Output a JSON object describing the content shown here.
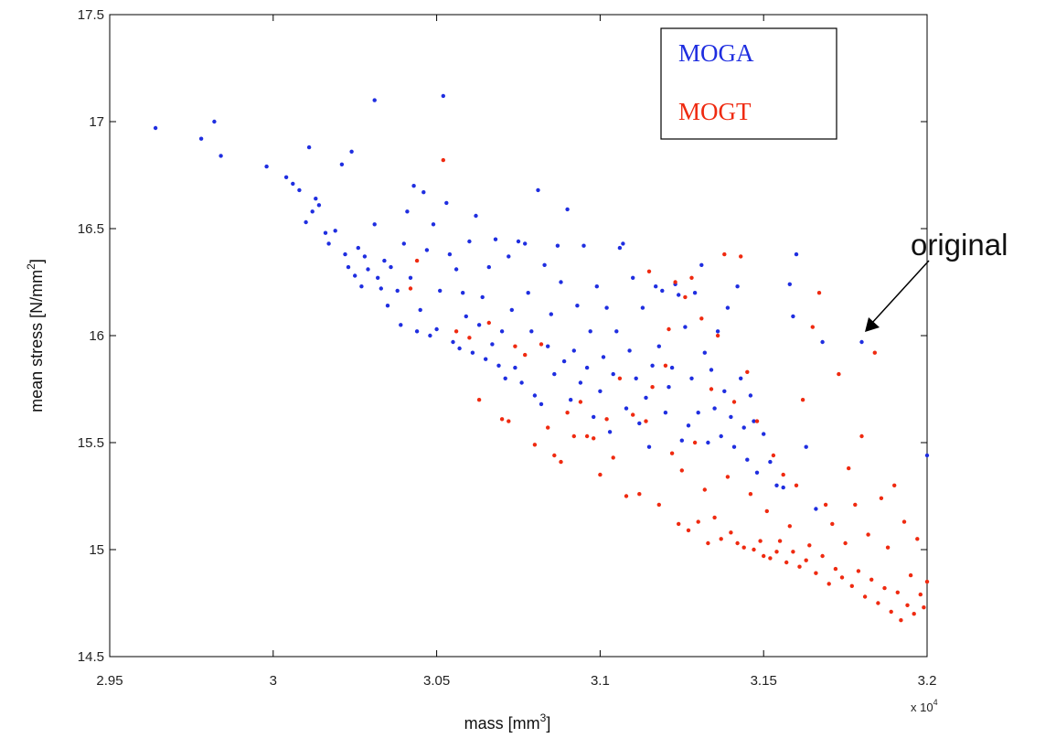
{
  "chart_data": {
    "type": "scatter",
    "title": "",
    "xlabel": "mass [mm",
    "xlabel_sup": "3",
    "xlabel_end": "]",
    "ylabel": "mean stress [N/mm",
    "ylabel_sup": "2",
    "ylabel_end": "]",
    "x_multiplier": {
      "base": "x 10",
      "exp": "4"
    },
    "xlim": [
      2.95,
      3.2
    ],
    "ylim": [
      14.5,
      17.5
    ],
    "x_ticks": [
      "2.95",
      "3",
      "3.05",
      "3.1",
      "3.15",
      "3.2"
    ],
    "y_ticks": [
      "14.5",
      "15",
      "15.5",
      "16",
      "16.5",
      "17",
      "17.5"
    ],
    "grid": false,
    "legend_position": "top-right",
    "annotation": {
      "text": "original",
      "x": 3.18,
      "y": 15.97
    },
    "series": [
      {
        "name": "MOGA",
        "color": "#1f2ee0",
        "points": [
          [
            2.964,
            16.97
          ],
          [
            2.978,
            16.92
          ],
          [
            2.982,
            17.0
          ],
          [
            2.984,
            16.84
          ],
          [
            2.998,
            16.79
          ],
          [
            3.004,
            16.74
          ],
          [
            3.006,
            16.71
          ],
          [
            3.008,
            16.68
          ],
          [
            3.01,
            16.53
          ],
          [
            3.011,
            16.88
          ],
          [
            3.012,
            16.58
          ],
          [
            3.013,
            16.64
          ],
          [
            3.014,
            16.61
          ],
          [
            3.016,
            16.48
          ],
          [
            3.017,
            16.43
          ],
          [
            3.019,
            16.49
          ],
          [
            3.021,
            16.8
          ],
          [
            3.022,
            16.38
          ],
          [
            3.023,
            16.32
          ],
          [
            3.024,
            16.86
          ],
          [
            3.025,
            16.28
          ],
          [
            3.026,
            16.41
          ],
          [
            3.027,
            16.23
          ],
          [
            3.028,
            16.37
          ],
          [
            3.029,
            16.31
          ],
          [
            3.031,
            17.1
          ],
          [
            3.031,
            16.52
          ],
          [
            3.032,
            16.27
          ],
          [
            3.033,
            16.22
          ],
          [
            3.034,
            16.35
          ],
          [
            3.035,
            16.14
          ],
          [
            3.036,
            16.32
          ],
          [
            3.038,
            16.21
          ],
          [
            3.039,
            16.05
          ],
          [
            3.04,
            16.43
          ],
          [
            3.041,
            16.58
          ],
          [
            3.042,
            16.27
          ],
          [
            3.043,
            16.7
          ],
          [
            3.044,
            16.02
          ],
          [
            3.045,
            16.12
          ],
          [
            3.046,
            16.67
          ],
          [
            3.047,
            16.4
          ],
          [
            3.048,
            16.0
          ],
          [
            3.049,
            16.52
          ],
          [
            3.05,
            16.03
          ],
          [
            3.051,
            16.21
          ],
          [
            3.052,
            17.12
          ],
          [
            3.053,
            16.62
          ],
          [
            3.054,
            16.38
          ],
          [
            3.055,
            15.97
          ],
          [
            3.056,
            16.31
          ],
          [
            3.057,
            15.94
          ],
          [
            3.058,
            16.2
          ],
          [
            3.059,
            16.09
          ],
          [
            3.06,
            16.44
          ],
          [
            3.061,
            15.92
          ],
          [
            3.062,
            16.56
          ],
          [
            3.063,
            16.05
          ],
          [
            3.064,
            16.18
          ],
          [
            3.065,
            15.89
          ],
          [
            3.066,
            16.32
          ],
          [
            3.067,
            15.96
          ],
          [
            3.068,
            16.45
          ],
          [
            3.069,
            15.86
          ],
          [
            3.07,
            16.02
          ],
          [
            3.071,
            15.8
          ],
          [
            3.072,
            16.37
          ],
          [
            3.073,
            16.12
          ],
          [
            3.074,
            15.85
          ],
          [
            3.075,
            16.44
          ],
          [
            3.076,
            15.78
          ],
          [
            3.077,
            16.43
          ],
          [
            3.078,
            16.2
          ],
          [
            3.079,
            16.02
          ],
          [
            3.08,
            15.72
          ],
          [
            3.081,
            16.68
          ],
          [
            3.082,
            15.68
          ],
          [
            3.083,
            16.33
          ],
          [
            3.084,
            15.95
          ],
          [
            3.085,
            16.1
          ],
          [
            3.086,
            15.82
          ],
          [
            3.087,
            16.42
          ],
          [
            3.088,
            16.25
          ],
          [
            3.089,
            15.88
          ],
          [
            3.09,
            16.59
          ],
          [
            3.091,
            15.7
          ],
          [
            3.092,
            15.93
          ],
          [
            3.093,
            16.14
          ],
          [
            3.094,
            15.78
          ],
          [
            3.095,
            16.42
          ],
          [
            3.096,
            15.85
          ],
          [
            3.097,
            16.02
          ],
          [
            3.098,
            15.62
          ],
          [
            3.099,
            16.23
          ],
          [
            3.1,
            15.74
          ],
          [
            3.101,
            15.9
          ],
          [
            3.102,
            16.13
          ],
          [
            3.103,
            15.55
          ],
          [
            3.104,
            15.82
          ],
          [
            3.105,
            16.02
          ],
          [
            3.106,
            16.41
          ],
          [
            3.107,
            16.43
          ],
          [
            3.108,
            15.66
          ],
          [
            3.109,
            15.93
          ],
          [
            3.11,
            16.27
          ],
          [
            3.111,
            15.8
          ],
          [
            3.112,
            15.59
          ],
          [
            3.113,
            16.13
          ],
          [
            3.114,
            15.71
          ],
          [
            3.115,
            15.48
          ],
          [
            3.116,
            15.86
          ],
          [
            3.117,
            16.23
          ],
          [
            3.118,
            15.95
          ],
          [
            3.119,
            16.21
          ],
          [
            3.12,
            15.64
          ],
          [
            3.121,
            15.76
          ],
          [
            3.122,
            15.85
          ],
          [
            3.123,
            16.24
          ],
          [
            3.124,
            16.19
          ],
          [
            3.125,
            15.51
          ],
          [
            3.126,
            16.04
          ],
          [
            3.127,
            15.58
          ],
          [
            3.128,
            15.8
          ],
          [
            3.129,
            16.2
          ],
          [
            3.13,
            15.64
          ],
          [
            3.131,
            16.33
          ],
          [
            3.132,
            15.92
          ],
          [
            3.133,
            15.5
          ],
          [
            3.134,
            15.84
          ],
          [
            3.135,
            15.66
          ],
          [
            3.136,
            16.02
          ],
          [
            3.137,
            15.53
          ],
          [
            3.138,
            15.74
          ],
          [
            3.139,
            16.13
          ],
          [
            3.14,
            15.62
          ],
          [
            3.141,
            15.48
          ],
          [
            3.142,
            16.23
          ],
          [
            3.143,
            15.8
          ],
          [
            3.144,
            15.57
          ],
          [
            3.145,
            15.42
          ],
          [
            3.146,
            15.72
          ],
          [
            3.147,
            15.6
          ],
          [
            3.148,
            15.36
          ],
          [
            3.15,
            15.54
          ],
          [
            3.152,
            15.41
          ],
          [
            3.154,
            15.3
          ],
          [
            3.156,
            15.29
          ],
          [
            3.158,
            16.24
          ],
          [
            3.159,
            16.09
          ],
          [
            3.16,
            16.38
          ],
          [
            3.163,
            15.48
          ],
          [
            3.166,
            15.19
          ],
          [
            3.168,
            15.97
          ],
          [
            3.18,
            15.97
          ],
          [
            3.2,
            15.44
          ]
        ]
      },
      {
        "name": "MOGT",
        "color": "#ef2a10",
        "points": [
          [
            3.042,
            16.22
          ],
          [
            3.044,
            16.35
          ],
          [
            3.052,
            16.82
          ],
          [
            3.056,
            16.02
          ],
          [
            3.06,
            15.99
          ],
          [
            3.063,
            15.7
          ],
          [
            3.066,
            16.06
          ],
          [
            3.07,
            15.61
          ],
          [
            3.072,
            15.6
          ],
          [
            3.074,
            15.95
          ],
          [
            3.077,
            15.91
          ],
          [
            3.08,
            15.49
          ],
          [
            3.082,
            15.96
          ],
          [
            3.084,
            15.57
          ],
          [
            3.086,
            15.44
          ],
          [
            3.088,
            15.41
          ],
          [
            3.09,
            15.64
          ],
          [
            3.092,
            15.53
          ],
          [
            3.094,
            15.69
          ],
          [
            3.096,
            15.53
          ],
          [
            3.098,
            15.52
          ],
          [
            3.1,
            15.35
          ],
          [
            3.102,
            15.61
          ],
          [
            3.104,
            15.43
          ],
          [
            3.106,
            15.8
          ],
          [
            3.108,
            15.25
          ],
          [
            3.11,
            15.63
          ],
          [
            3.112,
            15.26
          ],
          [
            3.114,
            15.6
          ],
          [
            3.115,
            16.3
          ],
          [
            3.116,
            15.76
          ],
          [
            3.118,
            15.21
          ],
          [
            3.12,
            15.86
          ],
          [
            3.121,
            16.03
          ],
          [
            3.122,
            15.45
          ],
          [
            3.123,
            16.25
          ],
          [
            3.124,
            15.12
          ],
          [
            3.125,
            15.37
          ],
          [
            3.126,
            16.18
          ],
          [
            3.127,
            15.09
          ],
          [
            3.128,
            16.27
          ],
          [
            3.129,
            15.5
          ],
          [
            3.13,
            15.13
          ],
          [
            3.131,
            16.08
          ],
          [
            3.132,
            15.28
          ],
          [
            3.133,
            15.03
          ],
          [
            3.134,
            15.75
          ],
          [
            3.135,
            15.15
          ],
          [
            3.136,
            16.0
          ],
          [
            3.137,
            15.05
          ],
          [
            3.138,
            16.38
          ],
          [
            3.139,
            15.34
          ],
          [
            3.14,
            15.08
          ],
          [
            3.141,
            15.69
          ],
          [
            3.142,
            15.03
          ],
          [
            3.143,
            16.37
          ],
          [
            3.144,
            15.01
          ],
          [
            3.145,
            15.83
          ],
          [
            3.146,
            15.26
          ],
          [
            3.147,
            15.0
          ],
          [
            3.148,
            15.6
          ],
          [
            3.149,
            15.04
          ],
          [
            3.15,
            14.97
          ],
          [
            3.151,
            15.18
          ],
          [
            3.152,
            14.96
          ],
          [
            3.153,
            15.44
          ],
          [
            3.154,
            14.99
          ],
          [
            3.155,
            15.04
          ],
          [
            3.156,
            15.35
          ],
          [
            3.157,
            14.94
          ],
          [
            3.158,
            15.11
          ],
          [
            3.159,
            14.99
          ],
          [
            3.16,
            15.3
          ],
          [
            3.161,
            14.92
          ],
          [
            3.162,
            15.7
          ],
          [
            3.163,
            14.95
          ],
          [
            3.164,
            15.02
          ],
          [
            3.165,
            16.04
          ],
          [
            3.166,
            14.89
          ],
          [
            3.167,
            16.2
          ],
          [
            3.168,
            14.97
          ],
          [
            3.169,
            15.21
          ],
          [
            3.17,
            14.84
          ],
          [
            3.171,
            15.12
          ],
          [
            3.172,
            14.91
          ],
          [
            3.173,
            15.82
          ],
          [
            3.174,
            14.87
          ],
          [
            3.175,
            15.03
          ],
          [
            3.176,
            15.38
          ],
          [
            3.177,
            14.83
          ],
          [
            3.178,
            15.21
          ],
          [
            3.179,
            14.9
          ],
          [
            3.18,
            15.53
          ],
          [
            3.181,
            14.78
          ],
          [
            3.182,
            15.07
          ],
          [
            3.183,
            14.86
          ],
          [
            3.184,
            15.92
          ],
          [
            3.185,
            14.75
          ],
          [
            3.186,
            15.24
          ],
          [
            3.187,
            14.82
          ],
          [
            3.188,
            15.01
          ],
          [
            3.189,
            14.71
          ],
          [
            3.19,
            15.3
          ],
          [
            3.191,
            14.8
          ],
          [
            3.192,
            14.67
          ],
          [
            3.193,
            15.13
          ],
          [
            3.194,
            14.74
          ],
          [
            3.195,
            14.88
          ],
          [
            3.196,
            14.7
          ],
          [
            3.197,
            15.05
          ],
          [
            3.198,
            14.79
          ],
          [
            3.199,
            14.73
          ],
          [
            3.2,
            14.85
          ]
        ]
      }
    ]
  }
}
